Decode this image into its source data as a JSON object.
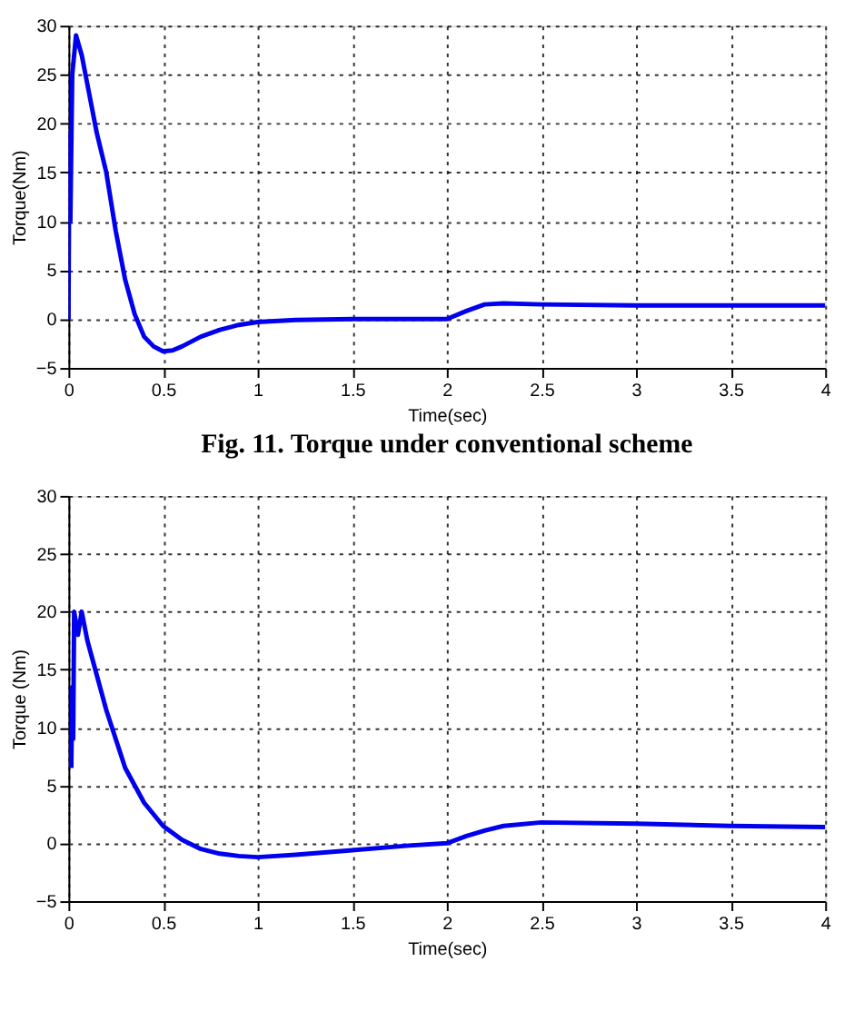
{
  "chart_data": [
    {
      "type": "line",
      "xlabel": "Time(sec)",
      "ylabel": "Torque(Nm)",
      "annotations": [
        "Fig. 11. Torque under conventional scheme"
      ],
      "x": [
        0,
        0.005,
        0.01,
        0.02,
        0.04,
        0.07,
        0.1,
        0.15,
        0.2,
        0.25,
        0.3,
        0.35,
        0.4,
        0.45,
        0.5,
        0.55,
        0.6,
        0.7,
        0.8,
        0.9,
        1.0,
        1.2,
        1.5,
        2.0,
        2.1,
        2.2,
        2.3,
        2.5,
        3,
        3.5,
        4
      ],
      "series": [
        {
          "color": "#0000ee",
          "values": [
            0,
            19,
            10,
            25,
            29,
            27,
            24,
            19,
            15,
            9,
            4,
            0.5,
            -1.8,
            -2.8,
            -3.3,
            -3.2,
            -2.8,
            -1.8,
            -1.1,
            -0.6,
            -0.3,
            -0.1,
            0,
            0,
            0.8,
            1.5,
            1.6,
            1.5,
            1.4,
            1.4,
            1.4
          ]
        }
      ],
      "xlim": [
        0,
        4
      ],
      "xticks": [
        0,
        0.5,
        1,
        1.5,
        2,
        2.5,
        3,
        3.5,
        4
      ],
      "ylim": [
        -5,
        30
      ],
      "yticks": [
        -5,
        0,
        5,
        10,
        15,
        20,
        25,
        30
      ],
      "grid": true,
      "marker": "none",
      "line_style": "solid"
    },
    {
      "type": "line",
      "xlabel": "Time(sec)",
      "ylabel": "Torque (Nm)",
      "x": [
        0.015,
        0.02,
        0.025,
        0.03,
        0.05,
        0.07,
        0.1,
        0.15,
        0.2,
        0.3,
        0.4,
        0.5,
        0.6,
        0.7,
        0.8,
        0.9,
        1.0,
        1.2,
        1.5,
        1.8,
        2.0,
        2.1,
        2.2,
        2.3,
        2.5,
        3,
        3.5,
        4
      ],
      "series": [
        {
          "color": "#0000ee",
          "values": [
            6.5,
            13.5,
            9,
            20,
            18,
            20,
            17.5,
            14.5,
            11.5,
            6.5,
            3.5,
            1.5,
            0.3,
            -0.5,
            -0.9,
            -1.1,
            -1.2,
            -1.0,
            -0.6,
            -0.2,
            0,
            0.6,
            1.1,
            1.5,
            1.8,
            1.7,
            1.5,
            1.4
          ]
        }
      ],
      "xlim": [
        0,
        4
      ],
      "xticks": [
        0,
        0.5,
        1,
        1.5,
        2,
        2.5,
        3,
        3.5,
        4
      ],
      "ylim": [
        -5,
        30
      ],
      "yticks": [
        -5,
        0,
        5,
        10,
        15,
        20,
        25,
        30
      ],
      "grid": true,
      "marker": "none",
      "line_style": "solid"
    }
  ]
}
